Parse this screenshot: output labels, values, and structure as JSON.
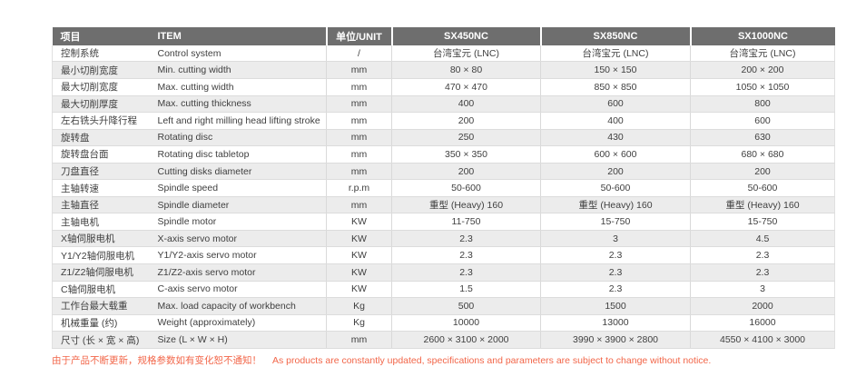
{
  "table": {
    "columns": [
      "项目",
      "ITEM",
      "单位/UNIT",
      "SX450NC",
      "SX850NC",
      "SX1000NC"
    ],
    "rows": [
      {
        "item_zh": "控制系统",
        "item_en": "Control system",
        "unit": "/",
        "sx450nc": "台湾宝元 (LNC)",
        "sx850nc": "台湾宝元 (LNC)",
        "sx1000nc": "台湾宝元 (LNC)"
      },
      {
        "item_zh": "最小切削宽度",
        "item_en": "Min. cutting width",
        "unit": "mm",
        "sx450nc": "80 × 80",
        "sx850nc": "150 × 150",
        "sx1000nc": "200 × 200"
      },
      {
        "item_zh": "最大切削宽度",
        "item_en": "Max. cutting width",
        "unit": "mm",
        "sx450nc": "470 × 470",
        "sx850nc": "850 × 850",
        "sx1000nc": "1050 × 1050"
      },
      {
        "item_zh": "最大切削厚度",
        "item_en": "Max. cutting thickness",
        "unit": "mm",
        "sx450nc": "400",
        "sx850nc": "600",
        "sx1000nc": "800"
      },
      {
        "item_zh": "左右铣头升降行程",
        "item_en": "Left and right milling head lifting stroke",
        "unit": "mm",
        "sx450nc": "200",
        "sx850nc": "400",
        "sx1000nc": "600"
      },
      {
        "item_zh": "旋转盘",
        "item_en": "Rotating disc",
        "unit": "mm",
        "sx450nc": "250",
        "sx850nc": "430",
        "sx1000nc": "630"
      },
      {
        "item_zh": "旋转盘台面",
        "item_en": "Rotating disc tabletop",
        "unit": "mm",
        "sx450nc": "350 × 350",
        "sx850nc": "600 × 600",
        "sx1000nc": "680 × 680"
      },
      {
        "item_zh": "刀盘直径",
        "item_en": "Cutting disks diameter",
        "unit": "mm",
        "sx450nc": "200",
        "sx850nc": "200",
        "sx1000nc": "200"
      },
      {
        "item_zh": "主轴转速",
        "item_en": "Spindle speed",
        "unit": "r.p.m",
        "sx450nc": "50-600",
        "sx850nc": "50-600",
        "sx1000nc": "50-600"
      },
      {
        "item_zh": "主轴直径",
        "item_en": "Spindle diameter",
        "unit": "mm",
        "sx450nc": "重型 (Heavy) 160",
        "sx850nc": "重型 (Heavy) 160",
        "sx1000nc": "重型 (Heavy) 160"
      },
      {
        "item_zh": "主轴电机",
        "item_en": "Spindle motor",
        "unit": "KW",
        "sx450nc": "11-750",
        "sx850nc": "15-750",
        "sx1000nc": "15-750"
      },
      {
        "item_zh": "X轴伺服电机",
        "item_en": "X-axis servo motor",
        "unit": "KW",
        "sx450nc": "2.3",
        "sx850nc": "3",
        "sx1000nc": "4.5"
      },
      {
        "item_zh": "Y1/Y2轴伺服电机",
        "item_en": "Y1/Y2-axis servo motor",
        "unit": "KW",
        "sx450nc": "2.3",
        "sx850nc": "2.3",
        "sx1000nc": "2.3"
      },
      {
        "item_zh": "Z1/Z2轴伺服电机",
        "item_en": "Z1/Z2-axis servo motor",
        "unit": "KW",
        "sx450nc": "2.3",
        "sx850nc": "2.3",
        "sx1000nc": "2.3"
      },
      {
        "item_zh": "C轴伺服电机",
        "item_en": "C-axis servo motor",
        "unit": "KW",
        "sx450nc": "1.5",
        "sx850nc": "2.3",
        "sx1000nc": "3"
      },
      {
        "item_zh": "工作台最大载重",
        "item_en": "Max. load capacity of workbench",
        "unit": "Kg",
        "sx450nc": "500",
        "sx850nc": "1500",
        "sx1000nc": "2000"
      },
      {
        "item_zh": "机械重量 (约)",
        "item_en": "Weight (approximately)",
        "unit": "Kg",
        "sx450nc": "10000",
        "sx850nc": "13000",
        "sx1000nc": "16000"
      },
      {
        "item_zh": "尺寸 (长 × 宽 × 高)",
        "item_en": "Size (L × W × H)",
        "unit": "mm",
        "sx450nc": "2600 × 3100 × 2000",
        "sx850nc": "3990 × 3900 × 2800",
        "sx1000nc": "4550 × 4100 × 3000"
      }
    ]
  },
  "footer": {
    "notice_zh": "由于产品不断更新，规格参数如有变化恕不通知！",
    "notice_en": "As products are constantly updated, specifications and parameters are subject to change without notice."
  },
  "colors": {
    "header_bg": "#6e6e6e",
    "stripe_bg": "#ececec",
    "body_text": "#3f3f3f",
    "notice_text": "#f26649"
  }
}
